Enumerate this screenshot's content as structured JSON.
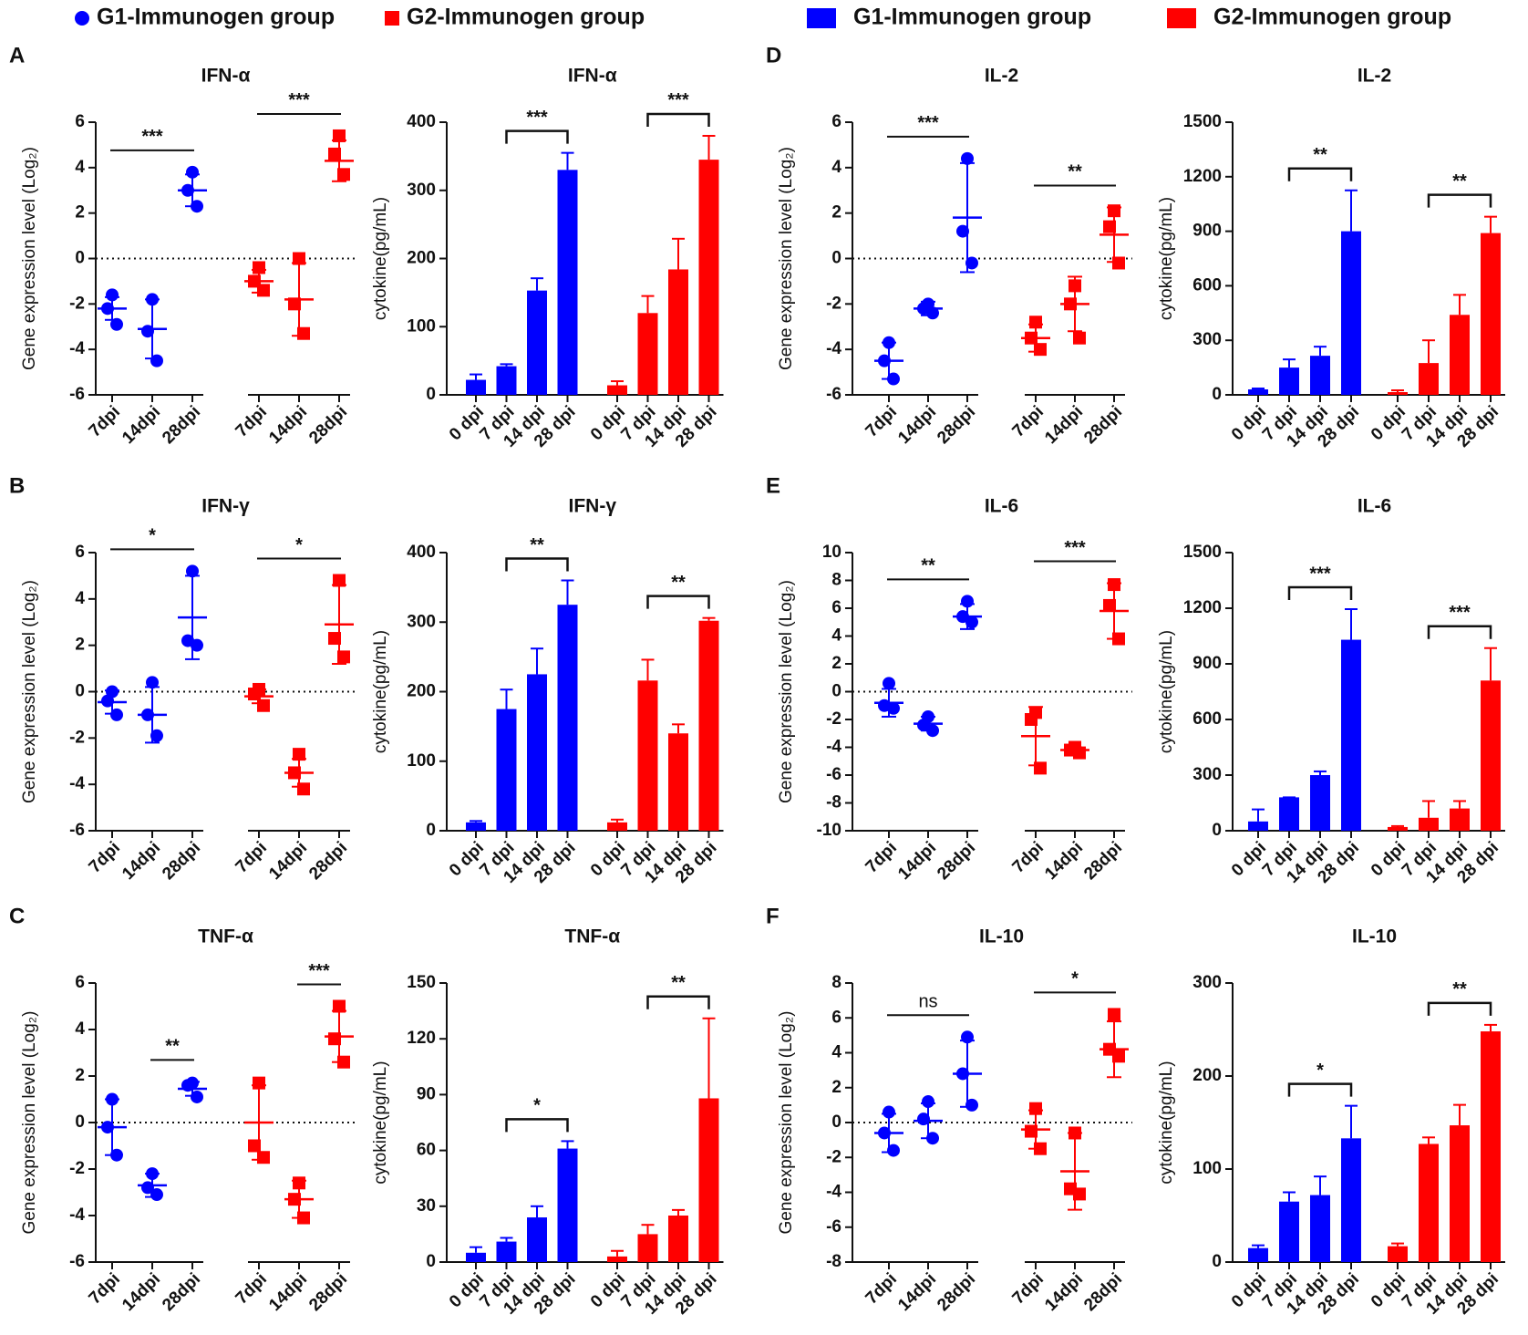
{
  "legends": [
    [
      {
        "name": "G1-Immunogen group",
        "color": "#0000ff",
        "marker": "circle"
      },
      {
        "name": "G2-Immunogen group",
        "color": "#ff0000",
        "marker": "square"
      }
    ],
    [
      {
        "name": "G1-Immunogen group",
        "color": "#0000ff",
        "marker": "rect"
      },
      {
        "name": "G2-Immunogen group",
        "color": "#ff0000",
        "marker": "rect"
      }
    ]
  ],
  "chart_data": [
    {
      "type": "dot",
      "panel": "A",
      "title": "IFN-α",
      "ylabel": "Gene expression level (Log₂)",
      "ylim": [
        -6,
        6
      ],
      "yticks": [
        -6,
        -4,
        -2,
        0,
        2,
        4,
        6
      ],
      "reference_line": 0,
      "categories": [
        "7dpi",
        "14dpi",
        "28dpi"
      ],
      "series": [
        {
          "color": "#0000ff",
          "marker": "circle",
          "points": [
            [
              -1.6,
              -2.2,
              -2.9
            ],
            [
              -1.8,
              -3.2,
              -4.5
            ],
            [
              3.8,
              3.0,
              2.3
            ]
          ],
          "mean": [
            -2.2,
            -3.1,
            3.0
          ],
          "sd": [
            0.5,
            1.3,
            0.7
          ]
        },
        {
          "color": "#ff0000",
          "marker": "square",
          "points": [
            [
              -0.4,
              -1.0,
              -1.4
            ],
            [
              0,
              -2.0,
              -3.3
            ],
            [
              5.4,
              4.6,
              3.7
            ]
          ],
          "mean": [
            -1.0,
            -1.8,
            4.3
          ],
          "sd": [
            0.5,
            1.6,
            0.9
          ]
        }
      ],
      "annotations": [
        {
          "text": "***",
          "series": 0,
          "from": 0,
          "to": 2
        },
        {
          "text": "***",
          "series": 1,
          "from": 0,
          "to": 2
        }
      ]
    },
    {
      "type": "bar",
      "title": "IFN-α",
      "ylabel": "cytokine(pg/mL)",
      "ylim": [
        0,
        400
      ],
      "yticks": [
        0,
        100,
        200,
        300,
        400
      ],
      "categories": [
        "0 dpi",
        "7 dpi",
        "14 dpi",
        "28 dpi"
      ],
      "series": [
        {
          "color": "#0000ff",
          "values": [
            22,
            42,
            153,
            330
          ],
          "errors": [
            8,
            3,
            18,
            25
          ]
        },
        {
          "color": "#ff0000",
          "values": [
            14,
            120,
            184,
            345
          ],
          "errors": [
            6,
            25,
            45,
            35
          ]
        }
      ],
      "annotations": [
        {
          "text": "***",
          "series": 0,
          "from": 1,
          "to": 3
        },
        {
          "text": "***",
          "series": 1,
          "from": 1,
          "to": 3
        }
      ]
    },
    {
      "type": "dot",
      "panel": "B",
      "title": "IFN-γ",
      "ylabel": "Gene expression level (Log₂)",
      "ylim": [
        -6,
        6
      ],
      "yticks": [
        -6,
        -4,
        -2,
        0,
        2,
        4,
        6
      ],
      "reference_line": 0,
      "categories": [
        "7dpi",
        "14dpi",
        "28dpi"
      ],
      "series": [
        {
          "color": "#0000ff",
          "marker": "circle",
          "points": [
            [
              0,
              -0.4,
              -1.0
            ],
            [
              0.4,
              -1.0,
              -1.9
            ],
            [
              5.2,
              2.2,
              2.0
            ]
          ],
          "mean": [
            -0.45,
            -1.0,
            3.2
          ],
          "sd": [
            0.5,
            1.2,
            1.8
          ]
        },
        {
          "color": "#ff0000",
          "marker": "square",
          "points": [
            [
              0.1,
              -0.1,
              -0.6
            ],
            [
              -2.7,
              -3.5,
              -4.2
            ],
            [
              4.8,
              2.3,
              1.5
            ]
          ],
          "mean": [
            -0.2,
            -3.5,
            2.9
          ],
          "sd": [
            0.3,
            0.6,
            1.7
          ]
        }
      ],
      "annotations": [
        {
          "text": "*",
          "series": 0,
          "from": 0,
          "to": 2
        },
        {
          "text": "*",
          "series": 1,
          "from": 0,
          "to": 2
        }
      ]
    },
    {
      "type": "bar",
      "title": "IFN-γ",
      "ylabel": "cytokine(pg/mL)",
      "ylim": [
        0,
        400
      ],
      "yticks": [
        0,
        100,
        200,
        300,
        400
      ],
      "categories": [
        "0 dpi",
        "7 dpi",
        "14 dpi",
        "28 dpi"
      ],
      "series": [
        {
          "color": "#0000ff",
          "values": [
            12,
            175,
            225,
            325
          ],
          "errors": [
            2,
            28,
            37,
            35
          ]
        },
        {
          "color": "#ff0000",
          "values": [
            12,
            216,
            140,
            302
          ],
          "errors": [
            4,
            30,
            13,
            4
          ]
        }
      ],
      "annotations": [
        {
          "text": "**",
          "series": 0,
          "from": 1,
          "to": 3
        },
        {
          "text": "**",
          "series": 1,
          "from": 1,
          "to": 3
        }
      ]
    },
    {
      "type": "dot",
      "panel": "C",
      "title": "TNF-α",
      "ylabel": "Gene expression level (Log₂)",
      "ylim": [
        -6,
        6
      ],
      "yticks": [
        -6,
        -4,
        -2,
        0,
        2,
        4,
        6
      ],
      "reference_line": 0,
      "categories": [
        "7dpi",
        "14dpi",
        "28dpi"
      ],
      "series": [
        {
          "color": "#0000ff",
          "marker": "circle",
          "points": [
            [
              1.0,
              -0.2,
              -1.4
            ],
            [
              -2.2,
              -2.8,
              -3.1
            ],
            [
              1.7,
              1.6,
              1.1
            ]
          ],
          "mean": [
            -0.2,
            -2.7,
            1.45
          ],
          "sd": [
            1.2,
            0.5,
            0.3
          ]
        },
        {
          "color": "#ff0000",
          "marker": "square",
          "points": [
            [
              1.7,
              -1.0,
              -1.5
            ],
            [
              -2.6,
              -3.3,
              -4.1
            ],
            [
              5.0,
              3.6,
              2.6
            ]
          ],
          "mean": [
            0,
            -3.3,
            3.7
          ],
          "sd": [
            1.6,
            0.8,
            1.1
          ]
        }
      ],
      "annotations": [
        {
          "text": "**",
          "series": 0,
          "from": 1,
          "to": 2
        },
        {
          "text": "***",
          "series": 1,
          "from": 1,
          "to": 2
        }
      ]
    },
    {
      "type": "bar",
      "title": "TNF-α",
      "ylabel": "cytokine(pg/mL)",
      "ylim": [
        0,
        150
      ],
      "yticks": [
        0,
        30,
        60,
        90,
        120,
        150
      ],
      "categories": [
        "0 dpi",
        "7 dpi",
        "14 dpi",
        "28 dpi"
      ],
      "series": [
        {
          "color": "#0000ff",
          "values": [
            5,
            11,
            24,
            61
          ],
          "errors": [
            3,
            2,
            6,
            4
          ]
        },
        {
          "color": "#ff0000",
          "values": [
            3,
            15,
            25,
            88
          ],
          "errors": [
            3,
            5,
            3,
            43
          ]
        }
      ],
      "annotations": [
        {
          "text": "*",
          "series": 0,
          "from": 1,
          "to": 3
        },
        {
          "text": "**",
          "series": 1,
          "from": 1,
          "to": 3
        }
      ]
    },
    {
      "type": "dot",
      "panel": "D",
      "title": "IL-2",
      "ylabel": "Gene expression level (Log₂)",
      "ylim": [
        -6,
        6
      ],
      "yticks": [
        -6,
        -4,
        -2,
        0,
        2,
        4,
        6
      ],
      "reference_line": 0,
      "categories": [
        "7dpi",
        "14dpi",
        "28dpi"
      ],
      "series": [
        {
          "color": "#0000ff",
          "marker": "circle",
          "points": [
            [
              -3.7,
              -4.5,
              -5.3
            ],
            [
              -2.0,
              -2.2,
              -2.4
            ],
            [
              4.4,
              1.2,
              -0.2
            ]
          ],
          "mean": [
            -4.5,
            -2.2,
            1.8
          ],
          "sd": [
            0.8,
            0.3,
            2.4
          ]
        },
        {
          "color": "#ff0000",
          "marker": "square",
          "points": [
            [
              -2.8,
              -3.5,
              -4.0
            ],
            [
              -1.2,
              -2.0,
              -3.5
            ],
            [
              2.1,
              1.4,
              -0.2
            ]
          ],
          "mean": [
            -3.5,
            -2.0,
            1.05
          ],
          "sd": [
            0.6,
            1.2,
            1.2
          ]
        }
      ],
      "annotations": [
        {
          "text": "***",
          "series": 0,
          "from": 0,
          "to": 2
        },
        {
          "text": "**",
          "series": 1,
          "from": 0,
          "to": 2
        }
      ]
    },
    {
      "type": "bar",
      "title": "IL-2",
      "ylabel": "cytokine(pg/mL)",
      "ylim": [
        0,
        1500
      ],
      "yticks": [
        0,
        300,
        600,
        900,
        1200,
        1500
      ],
      "categories": [
        "0 dpi",
        "7 dpi",
        "14 dpi",
        "28 dpi"
      ],
      "series": [
        {
          "color": "#0000ff",
          "values": [
            30,
            150,
            215,
            900
          ],
          "errors": [
            5,
            45,
            50,
            225
          ]
        },
        {
          "color": "#ff0000",
          "values": [
            15,
            175,
            440,
            890
          ],
          "errors": [
            10,
            125,
            110,
            90
          ]
        }
      ],
      "annotations": [
        {
          "text": "**",
          "series": 0,
          "from": 1,
          "to": 3
        },
        {
          "text": "**",
          "series": 1,
          "from": 1,
          "to": 3
        }
      ]
    },
    {
      "type": "dot",
      "panel": "E",
      "title": "IL-6",
      "ylabel": "Gene expression level (Log₂)",
      "ylim": [
        -10,
        10
      ],
      "yticks": [
        -10,
        -8,
        -6,
        -4,
        -2,
        0,
        2,
        4,
        6,
        8,
        10
      ],
      "reference_line": 0,
      "categories": [
        "7dpi",
        "14dpi",
        "28dpi"
      ],
      "series": [
        {
          "color": "#0000ff",
          "marker": "circle",
          "points": [
            [
              0.6,
              -1.0,
              -1.2
            ],
            [
              -1.8,
              -2.4,
              -2.8
            ],
            [
              6.5,
              5.4,
              5.0
            ]
          ],
          "mean": [
            -0.8,
            -2.3,
            5.4
          ],
          "sd": [
            1.0,
            0.5,
            0.9
          ]
        },
        {
          "color": "#ff0000",
          "marker": "square",
          "points": [
            [
              -1.5,
              -2.0,
              -5.5
            ],
            [
              -4.0,
              -4.2,
              -4.4
            ],
            [
              7.7,
              6.2,
              3.8
            ]
          ],
          "mean": [
            -3.2,
            -4.2,
            5.8
          ],
          "sd": [
            2.1,
            0.2,
            2.0
          ]
        }
      ],
      "annotations": [
        {
          "text": "**",
          "series": 0,
          "from": 0,
          "to": 2
        },
        {
          "text": "***",
          "series": 1,
          "from": 0,
          "to": 2
        }
      ]
    },
    {
      "type": "bar",
      "title": "IL-6",
      "ylabel": "cytokine(pg/mL)",
      "ylim": [
        0,
        1500
      ],
      "yticks": [
        0,
        300,
        600,
        900,
        1200,
        1500
      ],
      "categories": [
        "0 dpi",
        "7 dpi",
        "14 dpi",
        "28 dpi"
      ],
      "series": [
        {
          "color": "#0000ff",
          "values": [
            50,
            180,
            300,
            1030
          ],
          "errors": [
            65,
            0,
            20,
            165
          ]
        },
        {
          "color": "#ff0000",
          "values": [
            20,
            70,
            120,
            810
          ],
          "errors": [
            5,
            90,
            40,
            175
          ]
        }
      ],
      "annotations": [
        {
          "text": "***",
          "series": 0,
          "from": 1,
          "to": 3
        },
        {
          "text": "***",
          "series": 1,
          "from": 1,
          "to": 3
        }
      ]
    },
    {
      "type": "dot",
      "panel": "F",
      "title": "IL-10",
      "ylabel": "Gene expression level (Log₂)",
      "ylim": [
        -8,
        8
      ],
      "yticks": [
        -8,
        -6,
        -4,
        -2,
        0,
        2,
        4,
        6,
        8
      ],
      "reference_line": 0,
      "categories": [
        "7dpi",
        "14dpi",
        "28dpi"
      ],
      "series": [
        {
          "color": "#0000ff",
          "marker": "circle",
          "points": [
            [
              0.6,
              -0.6,
              -1.6
            ],
            [
              1.2,
              0.2,
              -0.9
            ],
            [
              4.9,
              2.8,
              1.0
            ]
          ],
          "mean": [
            -0.6,
            0.1,
            2.8
          ],
          "sd": [
            1.1,
            1.0,
            1.9
          ]
        },
        {
          "color": "#ff0000",
          "marker": "square",
          "points": [
            [
              0.8,
              -0.5,
              -1.5
            ],
            [
              -0.6,
              -3.8,
              -4.1
            ],
            [
              6.2,
              4.2,
              3.8
            ]
          ],
          "mean": [
            -0.4,
            -2.8,
            4.2
          ],
          "sd": [
            1.1,
            2.2,
            1.6
          ]
        }
      ],
      "annotations": [
        {
          "text": "ns",
          "series": 0,
          "from": 0,
          "to": 2
        },
        {
          "text": "*",
          "series": 1,
          "from": 0,
          "to": 2
        }
      ]
    },
    {
      "type": "bar",
      "title": "IL-10",
      "ylabel": "cytokine(pg/mL)",
      "ylim": [
        0,
        300
      ],
      "yticks": [
        0,
        100,
        200,
        300
      ],
      "categories": [
        "0 dpi",
        "7 dpi",
        "14 dpi",
        "28 dpi"
      ],
      "series": [
        {
          "color": "#0000ff",
          "values": [
            15,
            65,
            72,
            133
          ],
          "errors": [
            3,
            10,
            20,
            35
          ]
        },
        {
          "color": "#ff0000",
          "values": [
            17,
            127,
            147,
            248
          ],
          "errors": [
            3,
            7,
            22,
            7
          ]
        }
      ],
      "annotations": [
        {
          "text": "*",
          "series": 0,
          "from": 1,
          "to": 3
        },
        {
          "text": "**",
          "series": 1,
          "from": 1,
          "to": 3
        }
      ]
    }
  ]
}
